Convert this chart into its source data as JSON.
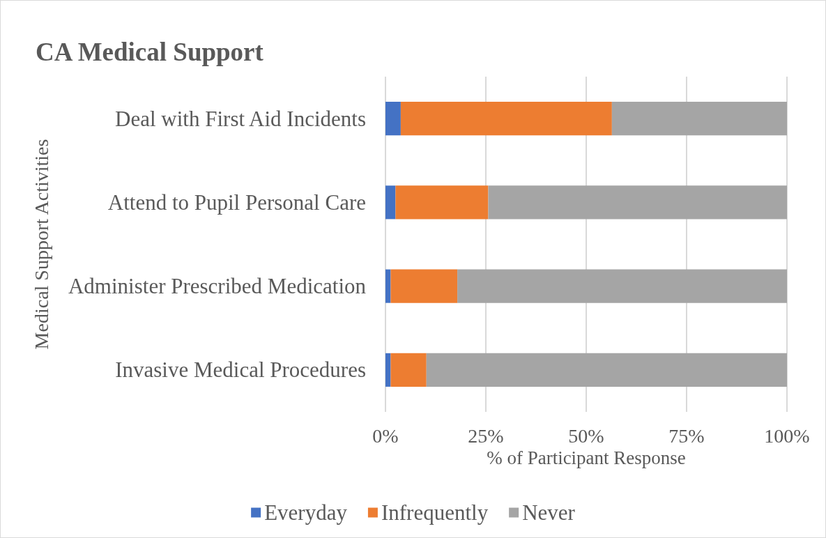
{
  "chart_data": {
    "type": "bar",
    "orientation": "horizontal",
    "stacked": true,
    "title": "CA Medical Support",
    "xlabel": "% of Participant Response",
    "ylabel": "Medical Support Activities",
    "categories": [
      "Deal with First Aid Incidents",
      "Attend to Pupil Personal Care",
      "Administer Prescribed Medication",
      "Invasive Medical Procedures"
    ],
    "series": [
      {
        "name": "Everyday",
        "color": "#4472c4",
        "values": [
          3.8,
          2.5,
          1.3,
          1.3
        ]
      },
      {
        "name": "Infrequently",
        "color": "#ed7d31",
        "values": [
          52.6,
          23.1,
          16.6,
          8.9
        ]
      },
      {
        "name": "Never",
        "color": "#a5a5a5",
        "values": [
          43.6,
          74.4,
          82.1,
          89.8
        ]
      }
    ],
    "xlim": [
      0,
      100
    ],
    "xticks": [
      {
        "value": 0,
        "label": "0%"
      },
      {
        "value": 25,
        "label": "25%"
      },
      {
        "value": 50,
        "label": "50%"
      },
      {
        "value": 75,
        "label": "75%"
      },
      {
        "value": 100,
        "label": "100%"
      }
    ],
    "grid": "x",
    "legend": "bottom"
  }
}
